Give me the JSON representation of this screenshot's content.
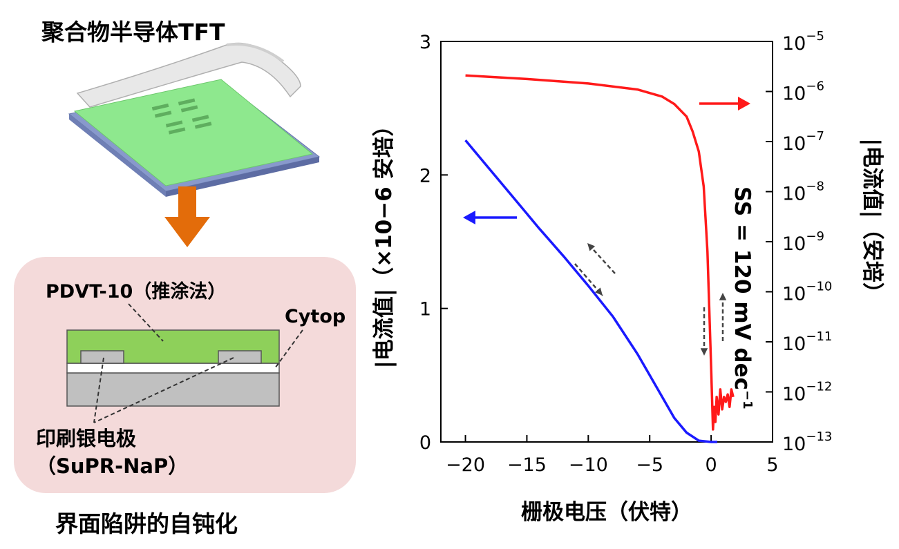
{
  "diagram": {
    "title": "聚合物半导体TFT",
    "caption": "界面陷阱的自钝化",
    "labels": {
      "semiconductor": "PDVT-10（推涂法）",
      "dielectric": "Cytop",
      "electrode_line1": "印刷银电极",
      "electrode_line2": "（SuPR-NaP）"
    },
    "colors": {
      "arrow": "#e36c0a",
      "film": "#8ee88e",
      "panel": "#f4dada"
    }
  },
  "chart_data": {
    "type": "line",
    "xlabel": "栅极电压（伏特）",
    "ylabel_left": "|电流值|（×10−6 安培）",
    "ylabel_right": "|电流值|（安培）",
    "annotation": "SS = 120 mV dec−1",
    "x_ticks": [
      "−20",
      "−15",
      "−10",
      "−5",
      "0",
      "5"
    ],
    "y_left_ticks": [
      "0",
      "1",
      "2",
      "3"
    ],
    "y_right_ticks": [
      {
        "base": "10",
        "exp": "−13"
      },
      {
        "base": "10",
        "exp": "−12"
      },
      {
        "base": "10",
        "exp": "−11"
      },
      {
        "base": "10",
        "exp": "−10"
      },
      {
        "base": "10",
        "exp": "−9"
      },
      {
        "base": "10",
        "exp": "−8"
      },
      {
        "base": "10",
        "exp": "−7"
      },
      {
        "base": "10",
        "exp": "−6"
      },
      {
        "base": "10",
        "exp": "−5"
      }
    ],
    "xlim": [
      -22,
      5
    ],
    "ylim_left": [
      0,
      3
    ],
    "ylim_right_log10": [
      -13,
      -5
    ],
    "series": [
      {
        "axis": "left",
        "color": "#1a1aff",
        "x": [
          -20,
          -18,
          -16,
          -14,
          -12,
          -10,
          -8,
          -6,
          -5,
          -4,
          -3,
          -2,
          -1,
          0,
          0.5
        ],
        "y": [
          2.26,
          2.04,
          1.82,
          1.6,
          1.39,
          1.17,
          0.94,
          0.66,
          0.5,
          0.34,
          0.18,
          0.07,
          0.01,
          0.0,
          0.0
        ]
      },
      {
        "axis": "right",
        "color": "#ff1a1a",
        "x": [
          -20,
          -15,
          -10,
          -6,
          -4,
          -3,
          -2,
          -1.5,
          -1,
          -0.6,
          -0.3,
          0,
          0.15,
          0.25,
          0.35,
          0.45,
          0.6,
          0.75,
          0.9,
          1.05,
          1.2,
          1.35,
          1.5,
          1.65,
          1.8
        ],
        "y_log10": [
          -5.68,
          -5.75,
          -5.84,
          -5.96,
          -6.1,
          -6.25,
          -6.5,
          -6.8,
          -7.2,
          -7.9,
          -9.2,
          -11.5,
          -12.75,
          -12.3,
          -12.6,
          -12.1,
          -12.45,
          -11.95,
          -12.35,
          -12.1,
          -12.2,
          -12.05,
          -12.3,
          -11.95,
          -12.1
        ]
      }
    ]
  }
}
